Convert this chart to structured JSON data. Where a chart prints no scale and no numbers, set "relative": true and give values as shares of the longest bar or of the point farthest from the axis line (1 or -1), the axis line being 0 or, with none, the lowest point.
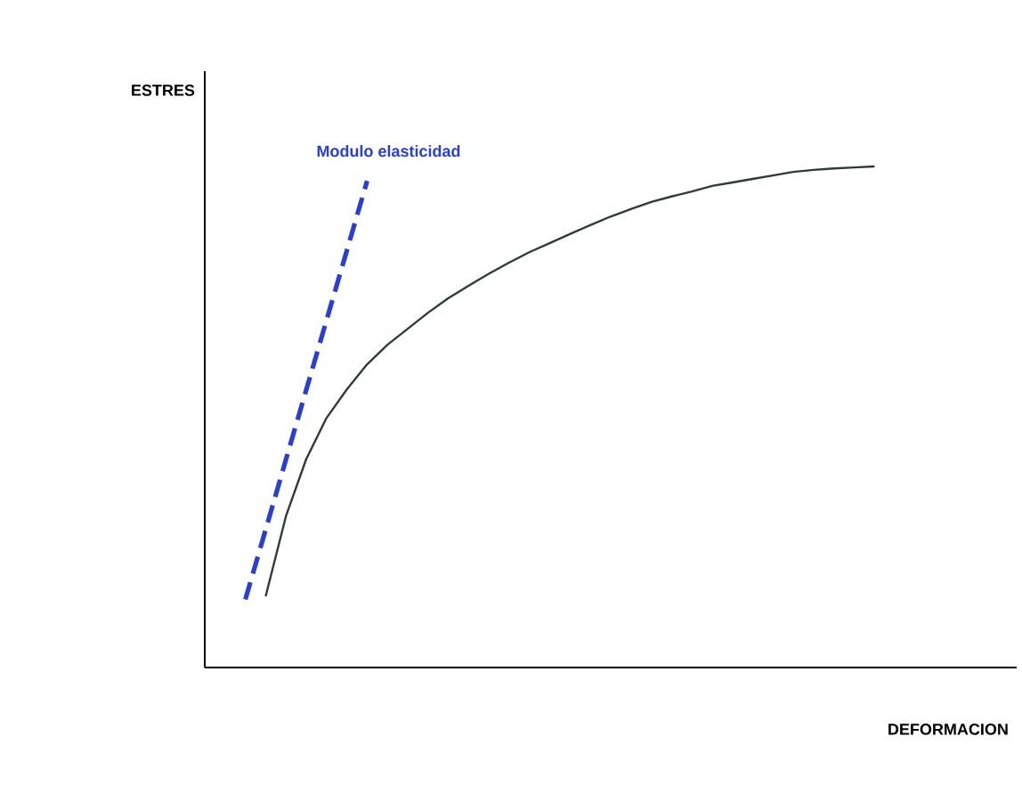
{
  "chart_data": {
    "type": "line",
    "relative": true,
    "xlabel": "DEFORMACION",
    "ylabel": "ESTRES",
    "categories": [
      null,
      null,
      null,
      null,
      null,
      null,
      null,
      null,
      null,
      null,
      null,
      null,
      null,
      null,
      null,
      null,
      null,
      null,
      null,
      null,
      null,
      null,
      null,
      null,
      null,
      null,
      null,
      null,
      null,
      null,
      null,
      null,
      null,
      null,
      null,
      null,
      null,
      null,
      null,
      null,
      null
    ],
    "series": [
      {
        "color": "#2f3b36",
        "line_style": "solid",
        "values": [
          null,
          null,
          null,
          0.142,
          0.302,
          0.416,
          0.498,
          0.555,
          0.605,
          0.644,
          0.676,
          0.708,
          0.737,
          0.762,
          0.786,
          0.808,
          0.829,
          0.847,
          0.865,
          0.883,
          0.9,
          0.915,
          0.929,
          0.94,
          0.95,
          0.961,
          0.968,
          0.975,
          0.982,
          0.989,
          0.993,
          0.996,
          0.998,
          1,
          null,
          null,
          null,
          null,
          null,
          null,
          null
        ]
      },
      {
        "name": "Modulo elasticidad",
        "color": "#2a3fd0",
        "line_style": "dashed",
        "values": [
          null,
          null,
          0.136,
          0.275,
          0.415,
          0.554,
          0.693,
          0.832,
          0.971,
          null,
          null,
          null,
          null,
          null,
          null,
          null,
          null,
          null,
          null,
          null,
          null,
          null,
          null,
          null,
          null,
          null,
          null,
          null,
          null,
          null,
          null,
          null,
          null,
          null,
          null,
          null,
          null,
          null,
          null,
          null,
          null
        ]
      }
    ]
  }
}
